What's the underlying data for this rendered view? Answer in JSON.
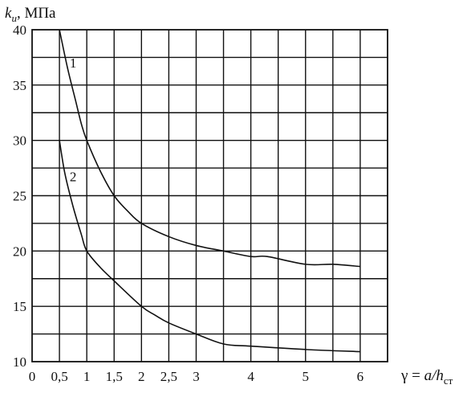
{
  "chart_data": {
    "type": "line",
    "y_axis_title": {
      "main": "k",
      "sub": "и",
      "unit": ", МПа"
    },
    "x_axis_title": {
      "pre": "γ = ",
      "main": "a/h",
      "sub": "ст"
    },
    "xlim": [
      0,
      6.5
    ],
    "ylim": [
      10,
      40
    ],
    "grid": true,
    "x_tick_labels": [
      {
        "x": 0,
        "label": "0"
      },
      {
        "x": 0.5,
        "label": "0,5"
      },
      {
        "x": 1,
        "label": "1"
      },
      {
        "x": 1.5,
        "label": "1,5"
      },
      {
        "x": 2,
        "label": "2"
      },
      {
        "x": 2.5,
        "label": "2,5"
      },
      {
        "x": 3,
        "label": "3"
      },
      {
        "x": 4,
        "label": "4"
      },
      {
        "x": 5,
        "label": "5"
      },
      {
        "x": 6,
        "label": "6"
      }
    ],
    "y_tick_labels": [
      {
        "y": 10,
        "label": "10"
      },
      {
        "y": 15,
        "label": "15"
      },
      {
        "y": 20,
        "label": "20"
      },
      {
        "y": 25,
        "label": "25"
      },
      {
        "y": 30,
        "label": "30"
      },
      {
        "y": 35,
        "label": "35"
      },
      {
        "y": 40,
        "label": "40"
      }
    ],
    "series": [
      {
        "name": "1",
        "x": [
          0.5,
          0.65,
          0.8,
          0.9,
          1.0,
          1.25,
          1.5,
          1.75,
          2.0,
          2.5,
          3.0,
          3.5,
          4.0,
          4.3,
          5.0,
          5.5,
          6.0
        ],
        "y": [
          40,
          36.5,
          33.5,
          31.5,
          30,
          27.2,
          25,
          23.6,
          22.5,
          21.3,
          20.5,
          20.0,
          19.5,
          19.5,
          18.8,
          18.8,
          18.6
        ]
      },
      {
        "name": "2",
        "x": [
          0.5,
          0.6,
          0.75,
          0.9,
          1.0,
          1.25,
          1.5,
          2.0,
          2.25,
          2.5,
          3.0,
          3.5,
          4.0,
          5.0,
          6.0
        ],
        "y": [
          30,
          27,
          24,
          21.5,
          20,
          18.5,
          17.3,
          15.0,
          14.2,
          13.5,
          12.5,
          11.6,
          11.4,
          11.1,
          10.9
        ]
      }
    ],
    "curve_labels": [
      {
        "series": "1",
        "x": 0.75,
        "y": 36.6
      },
      {
        "series": "2",
        "x": 0.75,
        "y": 26.3
      }
    ]
  }
}
